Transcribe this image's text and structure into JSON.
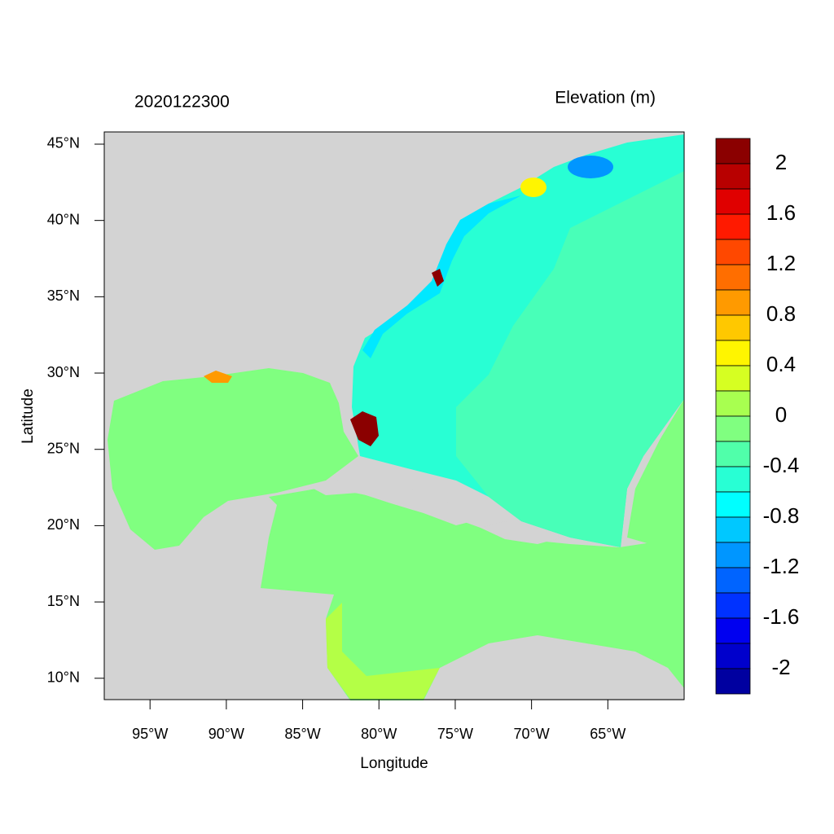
{
  "chart_data": {
    "type": "map",
    "title": "2020122300",
    "subtitle": "Elevation (m)",
    "xlabel": "Longitude",
    "ylabel": "Latitude",
    "xlim": [
      -98,
      -60
    ],
    "ylim": [
      8.6,
      45.8
    ],
    "xticks": [
      {
        "value": -95,
        "label": "95°W"
      },
      {
        "value": -90,
        "label": "90°W"
      },
      {
        "value": -85,
        "label": "85°W"
      },
      {
        "value": -80,
        "label": "80°W"
      },
      {
        "value": -75,
        "label": "75°W"
      },
      {
        "value": -70,
        "label": "70°W"
      },
      {
        "value": -65,
        "label": "65°W"
      }
    ],
    "yticks": [
      {
        "value": 10,
        "label": "10°N"
      },
      {
        "value": 15,
        "label": "15°N"
      },
      {
        "value": 20,
        "label": "20°N"
      },
      {
        "value": 25,
        "label": "25°N"
      },
      {
        "value": 30,
        "label": "30°N"
      },
      {
        "value": 35,
        "label": "35°N"
      },
      {
        "value": 40,
        "label": "40°N"
      },
      {
        "value": 45,
        "label": "45°N"
      }
    ],
    "colorbar": {
      "lim": [
        -2.2,
        2.2
      ],
      "ticks": [
        2,
        1.6,
        1.2,
        0.8,
        0.4,
        0,
        -0.4,
        -0.8,
        -1.2,
        -1.6,
        -2
      ],
      "colors": [
        "#8b0000",
        "#b80000",
        "#e00000",
        "#ff1a00",
        "#ff4800",
        "#ff6e00",
        "#ff9a00",
        "#ffc800",
        "#fff500",
        "#d6ff22",
        "#a8ff50",
        "#80ff80",
        "#50ffaa",
        "#28ffd4",
        "#00ffff",
        "#00c8ff",
        "#0096ff",
        "#0064ff",
        "#0032ff",
        "#0000f0",
        "#0000cc",
        "#0000a0"
      ]
    }
  }
}
